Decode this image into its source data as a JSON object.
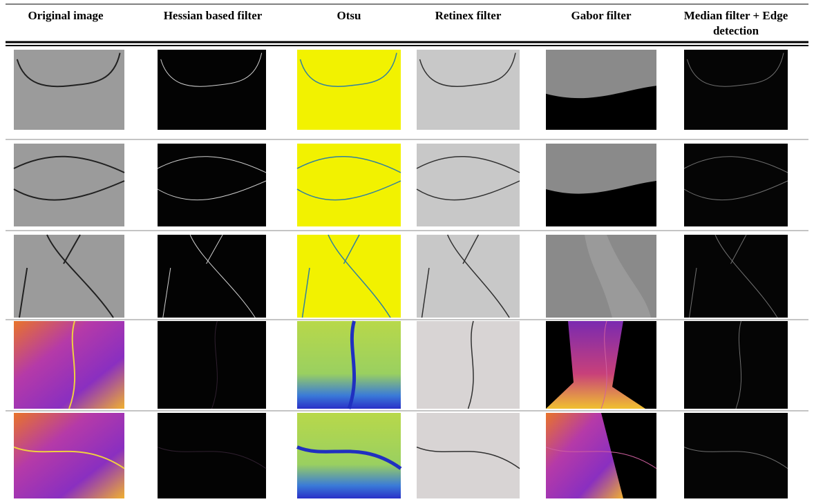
{
  "table": {
    "columns": [
      "Original image",
      "Hessian based filter",
      "Otsu",
      "Retinex filter",
      "Gabor filter",
      "Median filter + Edge detection"
    ]
  }
}
